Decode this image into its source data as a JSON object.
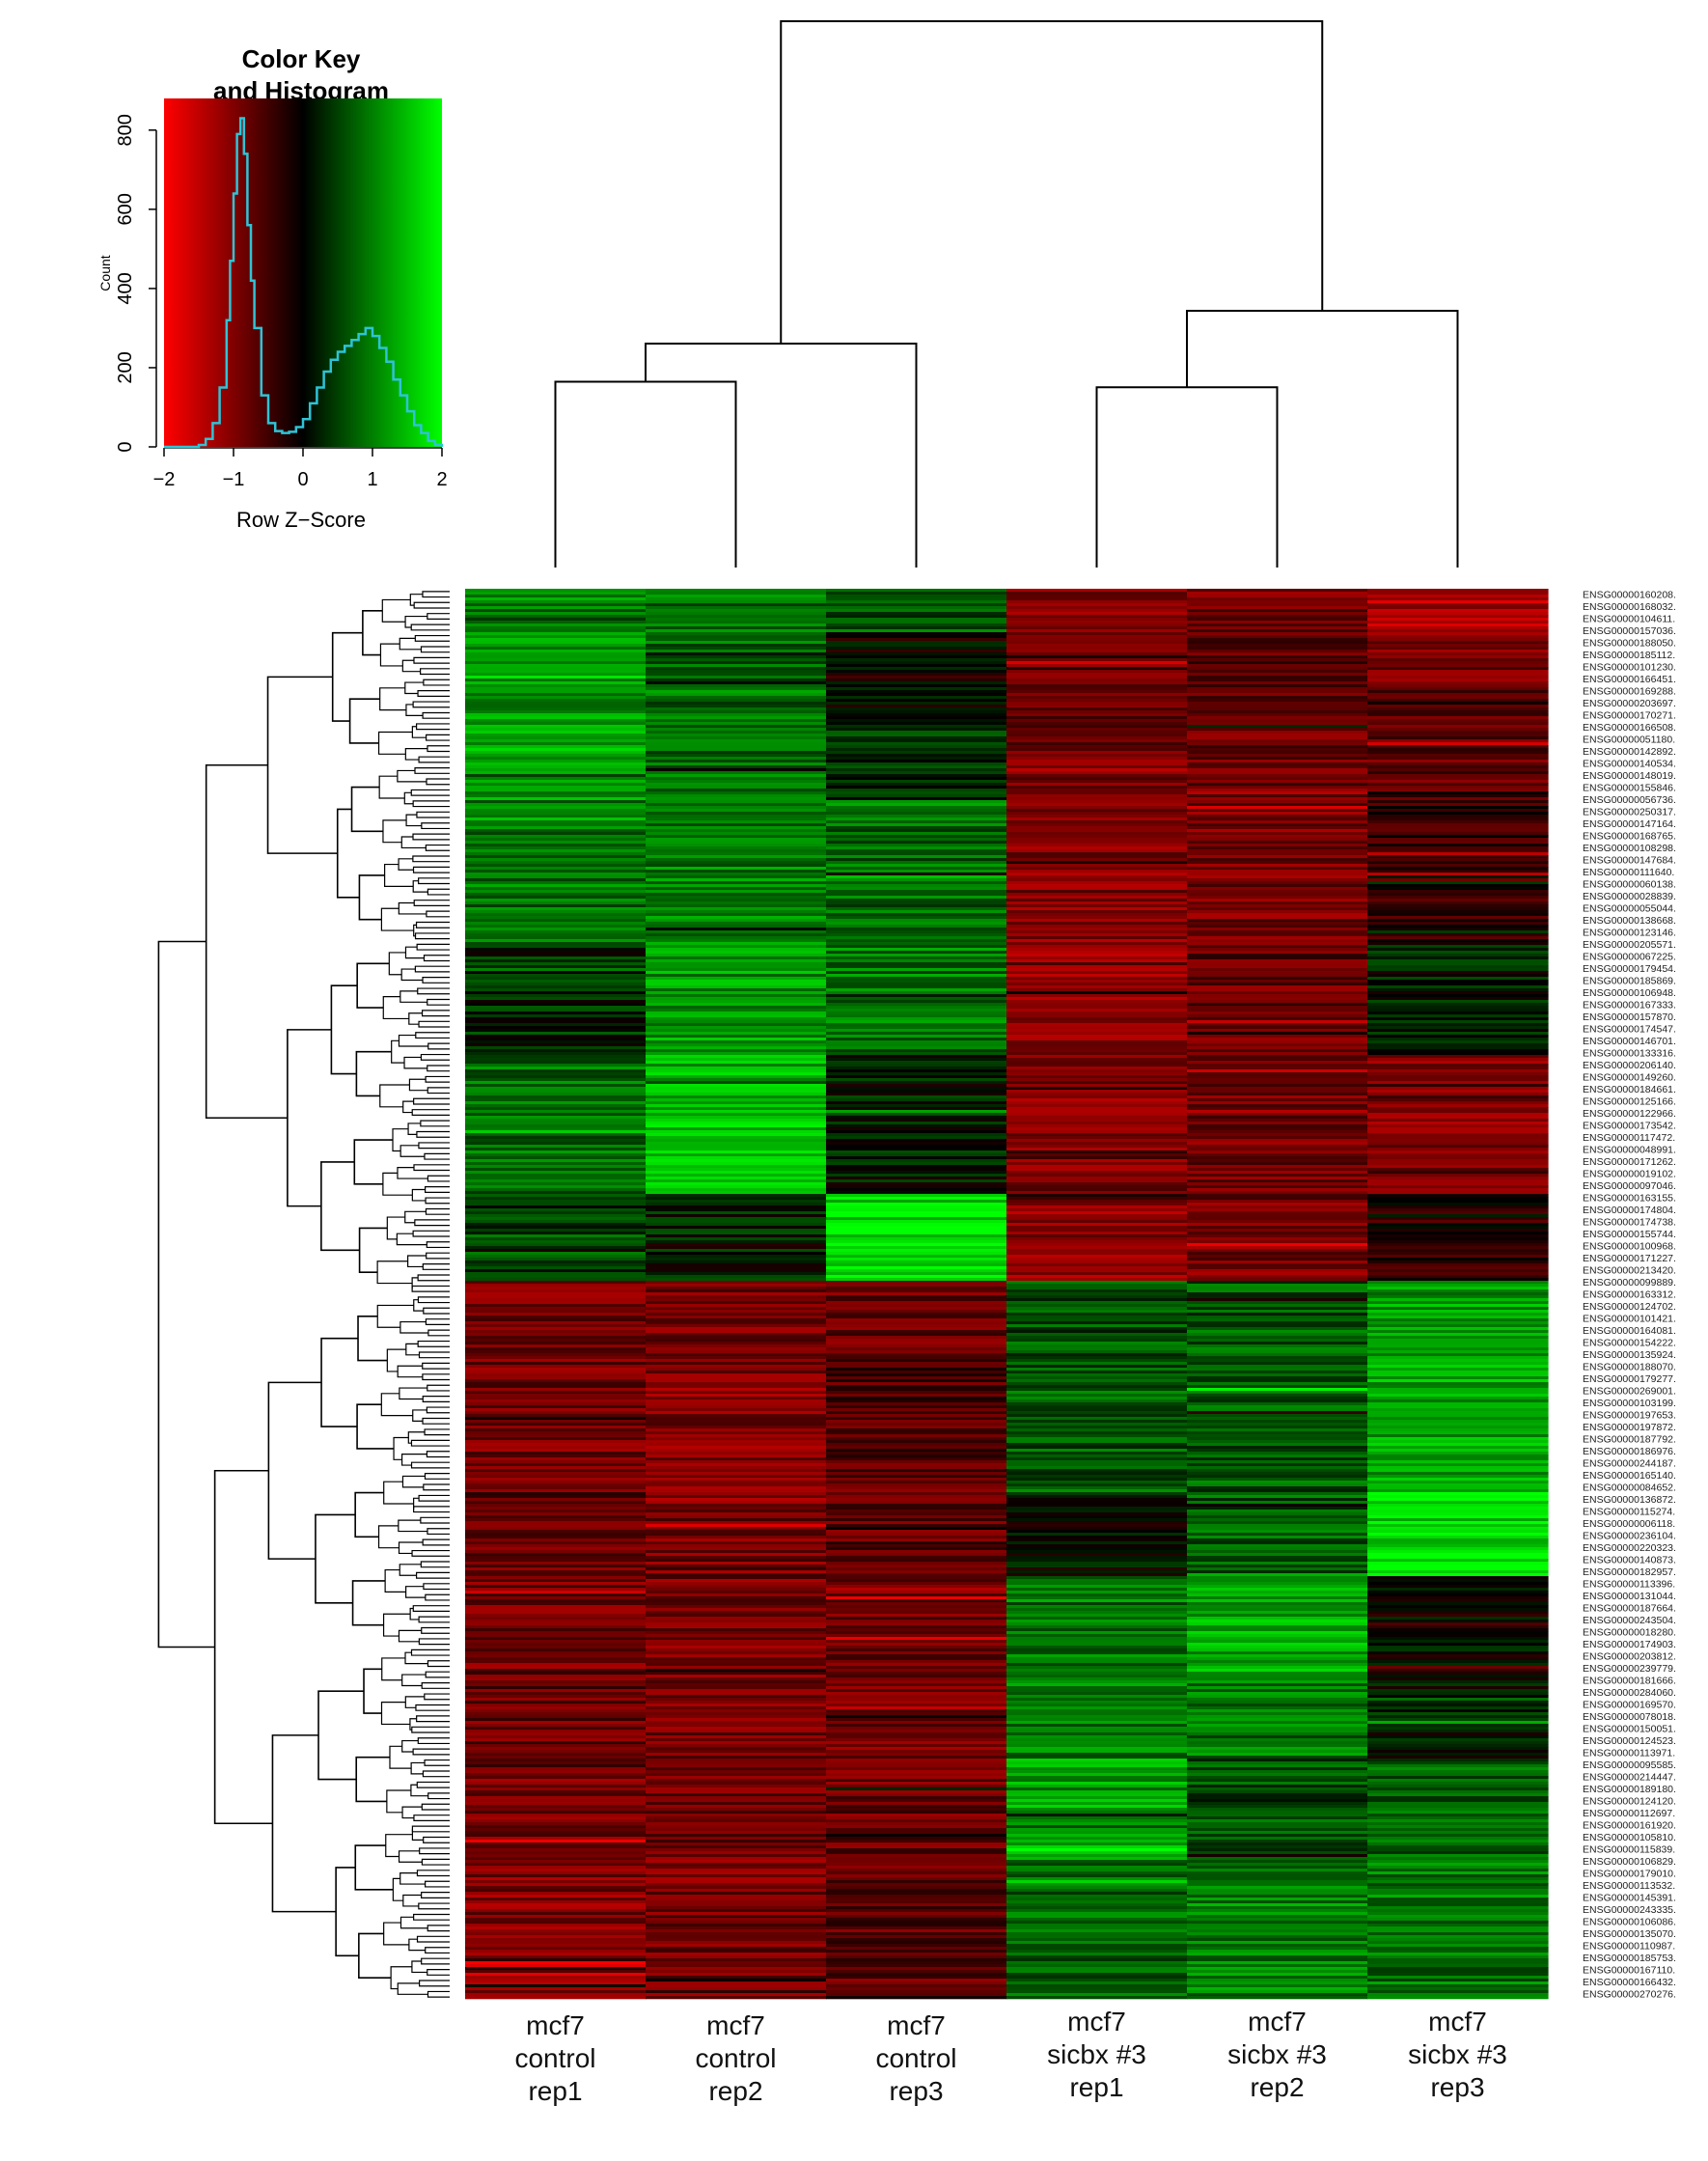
{
  "chart_data": [
    {
      "type": "histogram",
      "title": "Color Key and Histogram",
      "title_lines": [
        "Color Key",
        "and Histogram"
      ],
      "xlabel": "Row Z−Score",
      "ylabel": "Count",
      "xlim": [
        -2,
        2
      ],
      "ylim": [
        0,
        880
      ],
      "x_ticks": [
        "−2",
        "−1",
        "0",
        "1",
        "2"
      ],
      "x_tick_values": [
        -2,
        -1,
        0,
        1,
        2
      ],
      "y_ticks": [
        "0",
        "200",
        "400",
        "600",
        "800"
      ],
      "y_tick_values": [
        0,
        200,
        400,
        600,
        800
      ],
      "color_scale": {
        "low": "#ff0000",
        "mid": "#000000",
        "high": "#00ff00"
      },
      "histogram_color": "#2ec4d6",
      "bins": {
        "x": [
          -2.0,
          -1.8,
          -1.6,
          -1.5,
          -1.4,
          -1.3,
          -1.2,
          -1.1,
          -1.05,
          -1.0,
          -0.95,
          -0.9,
          -0.85,
          -0.8,
          -0.75,
          -0.7,
          -0.6,
          -0.5,
          -0.4,
          -0.3,
          -0.2,
          -0.1,
          0.0,
          0.1,
          0.2,
          0.3,
          0.4,
          0.5,
          0.6,
          0.7,
          0.8,
          0.9,
          1.0,
          1.1,
          1.2,
          1.3,
          1.4,
          1.5,
          1.6,
          1.7,
          1.8,
          1.9,
          2.0
        ],
        "y": [
          0,
          0,
          0,
          5,
          20,
          60,
          150,
          320,
          470,
          640,
          790,
          830,
          740,
          560,
          420,
          300,
          130,
          60,
          40,
          35,
          38,
          50,
          70,
          110,
          150,
          190,
          220,
          240,
          255,
          270,
          285,
          300,
          280,
          250,
          215,
          170,
          130,
          90,
          55,
          35,
          15,
          5,
          0
        ]
      }
    },
    {
      "type": "heatmap",
      "columns": [
        {
          "lines": [
            "mcf7",
            "control",
            "rep1"
          ]
        },
        {
          "lines": [
            "mcf7",
            "control",
            "rep2"
          ]
        },
        {
          "lines": [
            "mcf7",
            "control",
            "rep3"
          ]
        },
        {
          "lines": [
            "mcf7",
            "sicbx #3",
            "rep1"
          ]
        },
        {
          "lines": [
            "mcf7",
            "sicbx #3",
            "rep2"
          ]
        },
        {
          "lines": [
            "mcf7",
            "sicbx #3",
            "rep3"
          ]
        }
      ],
      "column_dendrogram": {
        "merges": [
          {
            "left": 0,
            "right": 1,
            "height": 0.34
          },
          {
            "left": "m0",
            "right": 2,
            "height": 0.41
          },
          {
            "left": 3,
            "right": 4,
            "height": 0.33
          },
          {
            "left": "m2",
            "right": 5,
            "height": 0.47
          },
          {
            "left": "m1",
            "right": "m3",
            "height": 1.0
          }
        ]
      },
      "row_blocks": [
        {
          "fraction": 0.03,
          "z": [
            1.0,
            0.9,
            0.7,
            -1.0,
            -0.9,
            -1.3
          ]
        },
        {
          "fraction": 0.04,
          "z": [
            1.1,
            0.8,
            -0.1,
            -0.9,
            -0.7,
            -0.9
          ]
        },
        {
          "fraction": 0.08,
          "z": [
            1.2,
            0.9,
            0.4,
            -0.9,
            -0.8,
            -0.7
          ]
        },
        {
          "fraction": 0.1,
          "z": [
            0.9,
            1.0,
            0.8,
            -1.0,
            -0.9,
            -0.4
          ]
        },
        {
          "fraction": 0.08,
          "z": [
            0.3,
            1.2,
            0.9,
            -1.1,
            -0.8,
            0.2
          ]
        },
        {
          "fraction": 0.1,
          "z": [
            0.8,
            1.4,
            0.2,
            -1.0,
            -0.9,
            -1.0
          ]
        },
        {
          "fraction": 0.06,
          "z": [
            0.4,
            0.2,
            1.7,
            -1.1,
            -0.9,
            -0.3
          ]
        },
        {
          "fraction": 0.05,
          "z": [
            -0.9,
            -0.9,
            -0.8,
            0.6,
            0.7,
            1.2
          ]
        },
        {
          "fraction": 0.1,
          "z": [
            -0.9,
            -1.0,
            -0.6,
            0.7,
            0.7,
            1.3
          ]
        },
        {
          "fraction": 0.06,
          "z": [
            -0.8,
            -0.9,
            -0.7,
            0.1,
            0.7,
            1.7
          ]
        },
        {
          "fraction": 0.07,
          "z": [
            -0.9,
            -0.9,
            -0.8,
            0.9,
            1.3,
            0.0
          ]
        },
        {
          "fraction": 0.06,
          "z": [
            -0.8,
            -0.9,
            -0.9,
            1.0,
            0.9,
            0.2
          ]
        },
        {
          "fraction": 0.07,
          "z": [
            -0.9,
            -0.8,
            -0.8,
            1.3,
            0.6,
            0.7
          ]
        },
        {
          "fraction": 0.1,
          "z": [
            -1.0,
            -0.9,
            -0.7,
            0.8,
            1.0,
            0.9
          ]
        }
      ],
      "row_labels": [
        "ENSG00000160208.",
        "ENSG00000168032.",
        "ENSG00000104611.",
        "ENSG00000157036.",
        "ENSG00000188050.",
        "ENSG00000185112.",
        "ENSG00000101230.",
        "ENSG00000166451.",
        "ENSG00000169288.",
        "ENSG00000203697.",
        "ENSG00000170271.",
        "ENSG00000166508.",
        "ENSG00000051180.",
        "ENSG00000142892.",
        "ENSG00000140534.",
        "ENSG00000148019.",
        "ENSG00000155846.",
        "ENSG00000056736.",
        "ENSG00000250317.",
        "ENSG00000147164.",
        "ENSG00000168765.",
        "ENSG00000108298.",
        "ENSG00000147684.",
        "ENSG00000111640.",
        "ENSG00000060138.",
        "ENSG00000028839.",
        "ENSG00000055044.",
        "ENSG00000138668.",
        "ENSG00000123146.",
        "ENSG00000205571.",
        "ENSG00000067225.",
        "ENSG00000179454.",
        "ENSG00000185869.",
        "ENSG00000106948.",
        "ENSG00000167333.",
        "ENSG00000157870.",
        "ENSG00000174547.",
        "ENSG00000146701.",
        "ENSG00000133316.",
        "ENSG00000206140.",
        "ENSG00000149260.",
        "ENSG00000184661.",
        "ENSG00000125166.",
        "ENSG00000122966.",
        "ENSG00000173542.",
        "ENSG00000117472.",
        "ENSG00000048991.",
        "ENSG00000171262.",
        "ENSG00000019102.",
        "ENSG00000097046.",
        "ENSG00000163155.",
        "ENSG00000174804.",
        "ENSG00000174738.",
        "ENSG00000155744.",
        "ENSG00000100968.",
        "ENSG00000171227.",
        "ENSG00000213420.",
        "ENSG00000099889.",
        "ENSG00000163312.",
        "ENSG00000124702.",
        "ENSG00000101421.",
        "ENSG00000164081.",
        "ENSG00000154222.",
        "ENSG00000135924.",
        "ENSG00000188070.",
        "ENSG00000179277.",
        "ENSG00000269001.",
        "ENSG00000103199.",
        "ENSG00000197653.",
        "ENSG00000197872.",
        "ENSG00000187792.",
        "ENSG00000186976.",
        "ENSG00000244187.",
        "ENSG00000165140.",
        "ENSG00000084652.",
        "ENSG00000136872.",
        "ENSG00000115274.",
        "ENSG00000006118.",
        "ENSG00000236104.",
        "ENSG00000220323.",
        "ENSG00000140873.",
        "ENSG00000182957.",
        "ENSG00000113396.",
        "ENSG00000131044.",
        "ENSG00000187664.",
        "ENSG00000243504.",
        "ENSG00000018280.",
        "ENSG00000174903.",
        "ENSG00000203812.",
        "ENSG00000239779.",
        "ENSG00000181666.",
        "ENSG00000284060.",
        "ENSG00000169570.",
        "ENSG00000078018.",
        "ENSG00000150051.",
        "ENSG00000124523.",
        "ENSG00000113971.",
        "ENSG00000095585.",
        "ENSG00000214447.",
        "ENSG00000189180.",
        "ENSG00000124120.",
        "ENSG00000112697.",
        "ENSG00000161920.",
        "ENSG00000105810.",
        "ENSG00000115839.",
        "ENSG00000106829.",
        "ENSG00000179010.",
        "ENSG00000113532.",
        "ENSG00000145391.",
        "ENSG00000243335.",
        "ENSG00000106086.",
        "ENSG00000135070.",
        "ENSG00000110987.",
        "ENSG00000185753.",
        "ENSG00000167110.",
        "ENSG00000166432.",
        "ENSG00000270276."
      ]
    }
  ]
}
